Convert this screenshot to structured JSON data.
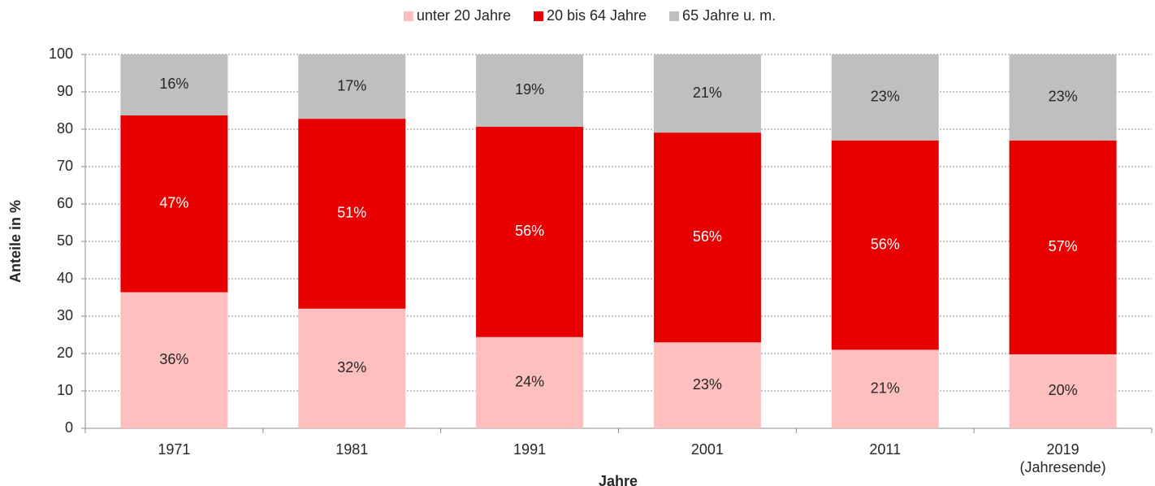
{
  "chart_data": {
    "type": "stacked_bar",
    "x_label": "Jahre",
    "y_label": "Anteile in %",
    "categories": [
      "1971",
      "1981",
      "1991",
      "2001",
      "2011",
      "2019\n(Jahresende)"
    ],
    "series": [
      {
        "name": "unter 20 Jahre",
        "color": "#ffbfbf",
        "label_color": "#262626",
        "values": [
          36.4,
          32.0,
          24.4,
          23.0,
          21.0,
          19.8
        ],
        "value_labels": [
          "36%",
          "32%",
          "24%",
          "23%",
          "21%",
          "20%"
        ]
      },
      {
        "name": "20 bis 64 Jahre",
        "color": "#e60000",
        "label_color": "#ffffff",
        "values": [
          47.3,
          50.8,
          56.3,
          56.1,
          56.0,
          57.2
        ],
        "value_labels": [
          "47%",
          "51%",
          "56%",
          "56%",
          "56%",
          "57%"
        ]
      },
      {
        "name": "65 Jahre u. m.",
        "color": "#bfbfbf",
        "label_color": "#262626",
        "values": [
          16.3,
          17.2,
          19.3,
          20.9,
          23.0,
          23.0
        ],
        "value_labels": [
          "16%",
          "17%",
          "19%",
          "21%",
          "23%",
          "23%"
        ]
      }
    ],
    "ylim": [
      0,
      100
    ],
    "yticks": [
      0,
      10,
      20,
      30,
      40,
      50,
      60,
      70,
      80,
      90,
      100
    ],
    "grid": true,
    "legend": "top"
  }
}
